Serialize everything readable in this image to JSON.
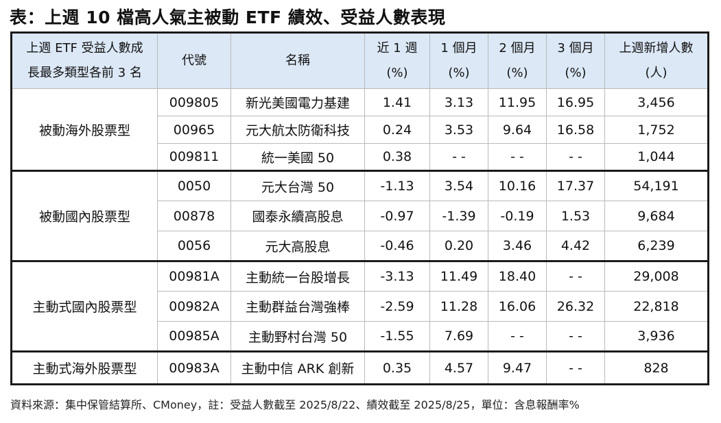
{
  "title": "表：上週 10 檔高人氣主被動 ETF 績效、受益人數表現",
  "header": [
    [
      "上週 ETF 受益人數成",
      "長最多類型各前 3 名"
    ],
    [
      "代號"
    ],
    [
      "名稱"
    ],
    [
      "近 1 週",
      "(%)"
    ],
    [
      "1 個月",
      "(%)"
    ],
    [
      "2 個月",
      "(%)"
    ],
    [
      "3 個月",
      "(%)"
    ],
    [
      "上週新增人數",
      "(人)"
    ]
  ],
  "groups": [
    {
      "category": "被動海外股票型",
      "rows": [
        [
          "009805",
          "新光美國電力基建",
          "1.41",
          "3.13",
          "11.95",
          "16.95",
          "3,456"
        ],
        [
          "00965",
          "元大航太防衛科技",
          "0.24",
          "3.53",
          "9.64",
          "16.58",
          "1,752"
        ],
        [
          "009811",
          "統一美國 50",
          "0.38",
          "- -",
          "- -",
          "- -",
          "1,044"
        ]
      ]
    },
    {
      "category": "被動國內股票型",
      "rows": [
        [
          "0050",
          "元大台灣 50",
          "-1.13",
          "3.54",
          "10.16",
          "17.37",
          "54,191"
        ],
        [
          "00878",
          "國泰永續高股息",
          "-0.97",
          "-1.39",
          "-0.19",
          "1.53",
          "9,684"
        ],
        [
          "0056",
          "元大高股息",
          "-0.46",
          "0.20",
          "3.46",
          "4.42",
          "6,239"
        ]
      ]
    },
    {
      "category": "主動式國內股票型",
      "rows": [
        [
          "00981A",
          "主動統一台股增長",
          "-3.13",
          "11.49",
          "18.40",
          "- -",
          "29,008"
        ],
        [
          "00982A",
          "主動群益台灣強棒",
          "-2.59",
          "11.28",
          "16.06",
          "26.32",
          "22,818"
        ],
        [
          "00985A",
          "主動野村台灣 50",
          "-1.55",
          "7.69",
          "- -",
          "- -",
          "3,936"
        ]
      ]
    },
    {
      "category": "主動式海外股票型",
      "rows": [
        [
          "00983A",
          "主動中信 ARK 創新",
          "0.35",
          "4.57",
          "9.47",
          "- -",
          "828"
        ]
      ]
    }
  ],
  "note": "資料來源：集中保管結算所、CMoney，註：受益人數截至 2025/8/22、績效截至 2025/8/25，單位：含息報酬率%"
}
